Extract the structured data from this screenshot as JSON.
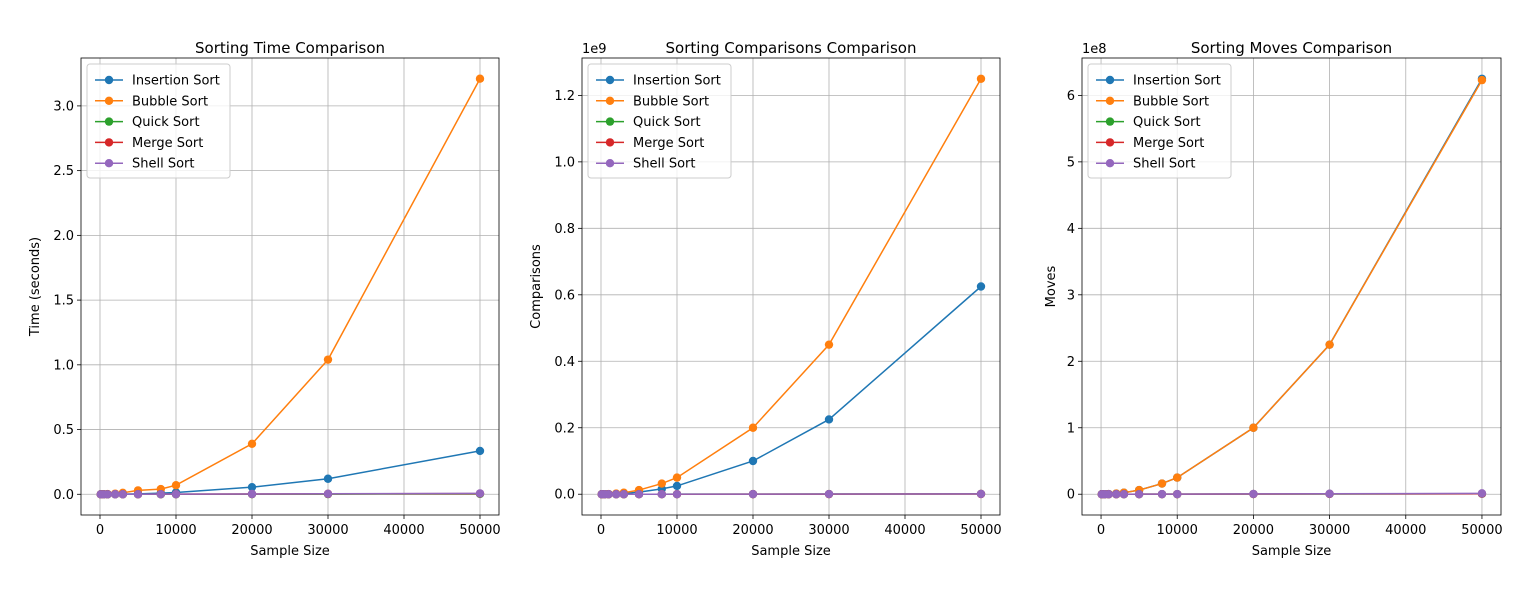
{
  "colors": {
    "Insertion Sort": "#1f77b4",
    "Bubble Sort": "#ff7f0e",
    "Quick Sort": "#2ca02c",
    "Merge Sort": "#d62728",
    "Shell Sort": "#9467bd"
  },
  "chart_data": [
    {
      "type": "line",
      "title": "Sorting Time Comparison",
      "xlabel": "Sample Size",
      "ylabel": "Time (seconds)",
      "offset_label": "",
      "xlim": [
        -2500,
        52500
      ],
      "ylim": [
        -0.16,
        3.37
      ],
      "xticks": [
        0,
        10000,
        20000,
        30000,
        40000,
        50000
      ],
      "xtick_labels": [
        "0",
        "10000",
        "20000",
        "30000",
        "40000",
        "50000"
      ],
      "yticks": [
        0.0,
        0.5,
        1.0,
        1.5,
        2.0,
        2.5,
        3.0
      ],
      "ytick_labels": [
        "0.0",
        "0.5",
        "1.0",
        "1.5",
        "2.0",
        "2.5",
        "3.0"
      ],
      "grid": true,
      "legend_position": "top-left",
      "x": [
        100,
        500,
        1000,
        2000,
        3000,
        5000,
        8000,
        10000,
        20000,
        30000,
        50000
      ],
      "series": [
        {
          "name": "Insertion Sort",
          "values": [
            0,
            0,
            0.0001,
            0.0006,
            0.0013,
            0.0035,
            0.009,
            0.014,
            0.055,
            0.12,
            0.335
          ]
        },
        {
          "name": "Bubble Sort",
          "values": [
            0,
            0.0003,
            0.0013,
            0.005,
            0.0115,
            0.03,
            0.04,
            0.07,
            0.39,
            1.04,
            3.21
          ]
        },
        {
          "name": "Quick Sort",
          "values": [
            0,
            0,
            0,
            0.0001,
            0.0001,
            0.0002,
            0.0003,
            0.0004,
            0.0009,
            0.0014,
            0.0025
          ]
        },
        {
          "name": "Merge Sort",
          "values": [
            0,
            0,
            0.0001,
            0.0002,
            0.0003,
            0.0005,
            0.0008,
            0.001,
            0.0021,
            0.0032,
            0.0055
          ]
        },
        {
          "name": "Shell Sort",
          "values": [
            0,
            0,
            0.0001,
            0.0002,
            0.0003,
            0.0005,
            0.0008,
            0.0011,
            0.0024,
            0.0038,
            0.0068
          ]
        }
      ]
    },
    {
      "type": "line",
      "title": "Sorting Comparisons Comparison",
      "xlabel": "Sample Size",
      "ylabel": "Comparisons",
      "offset_label": "1e9",
      "xlim": [
        -2500,
        52500
      ],
      "ylim": [
        -0.0625,
        1.3125
      ],
      "xticks": [
        0,
        10000,
        20000,
        30000,
        40000,
        50000
      ],
      "xtick_labels": [
        "0",
        "10000",
        "20000",
        "30000",
        "40000",
        "50000"
      ],
      "yticks": [
        0.0,
        0.2,
        0.4,
        0.6,
        0.8,
        1.0,
        1.2
      ],
      "ytick_labels": [
        "0.0",
        "0.2",
        "0.4",
        "0.6",
        "0.8",
        "1.0",
        "1.2"
      ],
      "grid": true,
      "legend_position": "top-left",
      "x": [
        100,
        500,
        1000,
        2000,
        3000,
        5000,
        8000,
        10000,
        20000,
        30000,
        50000
      ],
      "series": [
        {
          "name": "Insertion Sort",
          "values": [
            2.5e-06,
            6.25e-05,
            0.00025,
            0.001,
            0.00225,
            0.00625,
            0.016,
            0.025,
            0.1,
            0.225,
            0.625
          ]
        },
        {
          "name": "Bubble Sort",
          "values": [
            5e-06,
            0.000125,
            0.0005,
            0.002,
            0.0045,
            0.0125,
            0.032,
            0.05,
            0.2,
            0.45,
            1.25
          ]
        },
        {
          "name": "Quick Sort",
          "values": [
            0,
            0,
            0,
            0,
            0,
            0.0001,
            0.0001,
            0.0002,
            0.0003,
            0.0005,
            0.0009
          ]
        },
        {
          "name": "Merge Sort",
          "values": [
            0,
            0,
            0,
            0,
            0,
            0.0001,
            0.0001,
            0.0001,
            0.0003,
            0.0004,
            0.0007
          ]
        },
        {
          "name": "Shell Sort",
          "values": [
            0,
            0,
            0,
            0,
            0.0001,
            0.0001,
            0.0001,
            0.0002,
            0.0004,
            0.0006,
            0.001
          ]
        }
      ]
    },
    {
      "type": "line",
      "title": "Sorting Moves Comparison",
      "xlabel": "Sample Size",
      "ylabel": "Moves",
      "offset_label": "1e8",
      "xlim": [
        -2500,
        52500
      ],
      "ylim": [
        -0.3125,
        6.5625
      ],
      "xticks": [
        0,
        10000,
        20000,
        30000,
        40000,
        50000
      ],
      "xtick_labels": [
        "0",
        "10000",
        "20000",
        "30000",
        "40000",
        "50000"
      ],
      "yticks": [
        0,
        1,
        2,
        3,
        4,
        5,
        6
      ],
      "ytick_labels": [
        "0",
        "1",
        "2",
        "3",
        "4",
        "5",
        "6"
      ],
      "grid": true,
      "legend_position": "top-left",
      "x": [
        100,
        500,
        1000,
        2000,
        3000,
        5000,
        8000,
        10000,
        20000,
        30000,
        50000
      ],
      "series": [
        {
          "name": "Insertion Sort",
          "values": [
            2.5e-05,
            0.000625,
            0.0025,
            0.01,
            0.0225,
            0.0625,
            0.16,
            0.25,
            1.0,
            2.25,
            6.25
          ]
        },
        {
          "name": "Bubble Sort",
          "values": [
            2.5e-05,
            0.000625,
            0.0025,
            0.01,
            0.0225,
            0.0625,
            0.16,
            0.25,
            1.0,
            2.25,
            6.23
          ]
        },
        {
          "name": "Quick Sort",
          "values": [
            0,
            0,
            0,
            0,
            0,
            0.0006,
            0.001,
            0.0013,
            0.0028,
            0.0043,
            0.0075
          ]
        },
        {
          "name": "Merge Sort",
          "values": [
            0,
            0,
            0,
            0,
            0.0004,
            0.0006,
            0.001,
            0.0013,
            0.0029,
            0.0045,
            0.0078
          ]
        },
        {
          "name": "Shell Sort",
          "values": [
            0,
            0,
            0,
            0.0003,
            0.0005,
            0.0009,
            0.0015,
            0.002,
            0.0045,
            0.0072,
            0.013
          ]
        }
      ]
    }
  ]
}
